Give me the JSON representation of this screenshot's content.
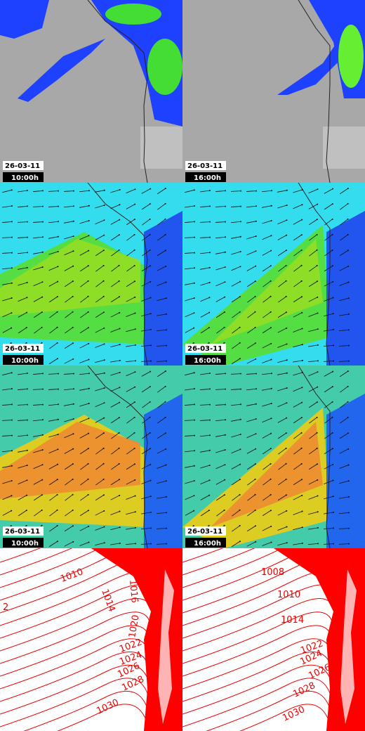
{
  "map_panels": [
    {
      "date": "26-03-11",
      "time": "10:00h"
    },
    {
      "date": "26-03-11",
      "time": "16:00h"
    },
    {
      "date": "26-03-11",
      "time": "10:00h"
    },
    {
      "date": "26-03-11",
      "time": "16:00h"
    },
    {
      "date": "26-03-11",
      "time": "10:00h"
    },
    {
      "date": "26-03-11",
      "time": "16:00h"
    }
  ],
  "isobar_panels": [
    {
      "labels": [
        "1010",
        "1014",
        "1016",
        "2",
        "1020",
        "1022",
        "1024",
        "1026",
        "1028",
        "1030"
      ]
    },
    {
      "labels": [
        "1008",
        "1010",
        "1014",
        "1022",
        "1024",
        "1026",
        "1028",
        "1030"
      ]
    }
  ]
}
